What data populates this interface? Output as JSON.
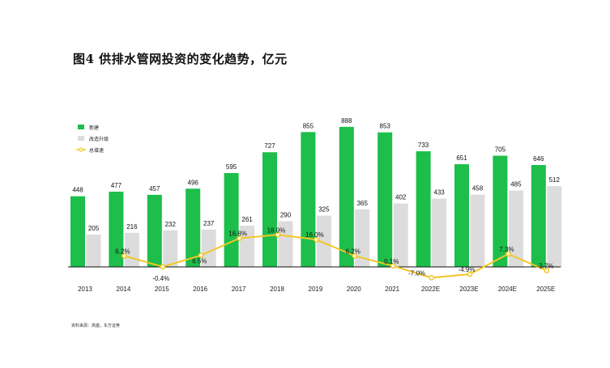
{
  "title": "图4 供排水管网投资的变化趋势，亿元",
  "source": "资料来源：高盛，东方证券",
  "colors": {
    "new": "#1dbe4a",
    "renovation": "#dcdcdc",
    "growth": "#f2c624",
    "axis": "#111111"
  },
  "chart_data": {
    "type": "bar",
    "title": "图4 供排水管网投资的变化趋势，亿元",
    "categories": [
      "2013",
      "2014",
      "2015",
      "2016",
      "2017",
      "2018",
      "2019",
      "2020",
      "2021",
      "2022E",
      "2023E",
      "2024E",
      "2025E"
    ],
    "series": [
      {
        "name": "新建",
        "type": "bar",
        "values": [
          448,
          477,
          457,
          496,
          595,
          727,
          855,
          888,
          853,
          733,
          651,
          705,
          646
        ]
      },
      {
        "name": "改造升级",
        "type": "bar",
        "values": [
          205,
          216,
          232,
          237,
          261,
          290,
          325,
          365,
          402,
          433,
          458,
          485,
          512
        ]
      },
      {
        "name": "总增速",
        "type": "line",
        "unit": "%",
        "values": [
          null,
          6.2,
          -0.4,
          6.5,
          16.8,
          18.9,
          16.0,
          6.2,
          0.1,
          -7.0,
          -4.9,
          7.3,
          -2.7
        ],
        "labels": [
          null,
          "6.2%",
          "-0.4%",
          "6.5%",
          "16.8%",
          "18.9%",
          "16.0%",
          "6.2%",
          "0.1%",
          "-7.0%",
          "-4.9%",
          "7.3%",
          "-2.7%"
        ]
      }
    ],
    "legend_position": "top-left",
    "grid": false
  }
}
